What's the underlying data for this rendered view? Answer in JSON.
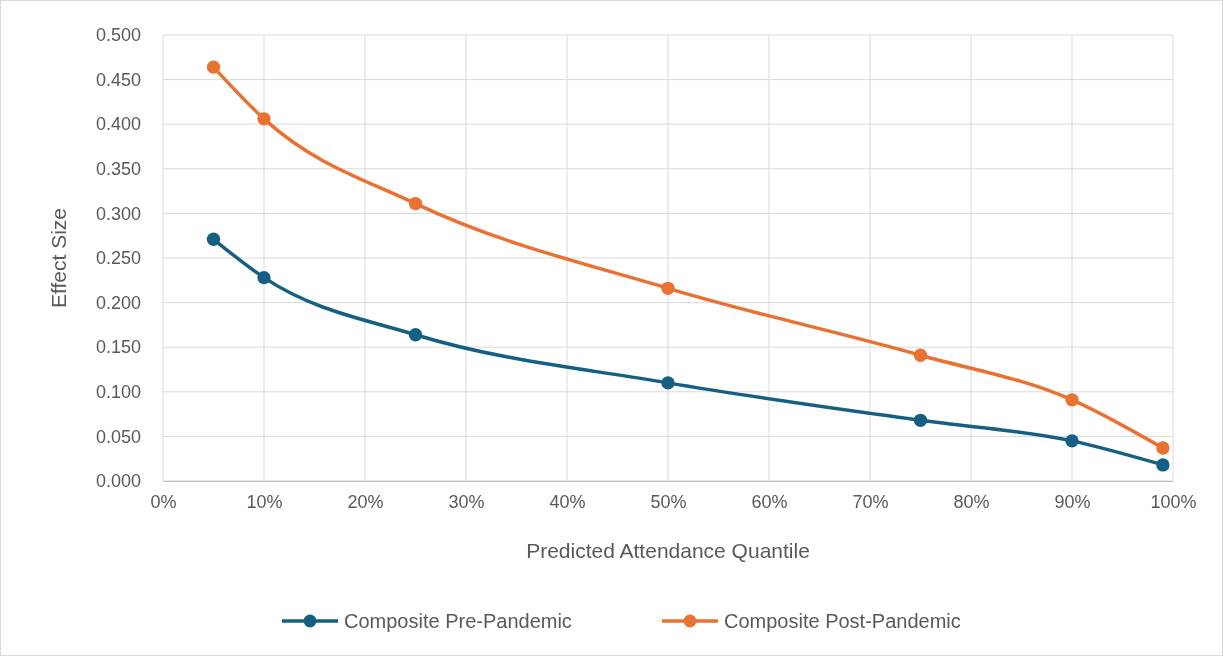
{
  "chart_data": {
    "type": "line",
    "xlabel": "Predicted Attendance Quantile",
    "ylabel": "Effect Size",
    "x": [
      5,
      10,
      25,
      50,
      75,
      90,
      99
    ],
    "series": [
      {
        "name": "Composite Pre-Pandemic",
        "color": "#156082",
        "values": [
          0.271,
          0.228,
          0.164,
          0.11,
          0.068,
          0.045,
          0.018
        ]
      },
      {
        "name": "Composite Post-Pandemic",
        "color": "#e97132",
        "values": [
          0.464,
          0.406,
          0.311,
          0.216,
          0.141,
          0.091,
          0.037
        ]
      }
    ],
    "xlim": [
      0,
      100
    ],
    "xticks": [
      {
        "value": 0,
        "label": "0%"
      },
      {
        "value": 10,
        "label": "10%"
      },
      {
        "value": 20,
        "label": "20%"
      },
      {
        "value": 30,
        "label": "30%"
      },
      {
        "value": 40,
        "label": "40%"
      },
      {
        "value": 50,
        "label": "50%"
      },
      {
        "value": 60,
        "label": "60%"
      },
      {
        "value": 70,
        "label": "70%"
      },
      {
        "value": 80,
        "label": "80%"
      },
      {
        "value": 90,
        "label": "90%"
      },
      {
        "value": 100,
        "label": "100%"
      }
    ],
    "ylim": [
      0,
      0.5
    ],
    "yticks": [
      {
        "value": 0,
        "label": "0.000"
      },
      {
        "value": 0.05,
        "label": "0.050"
      },
      {
        "value": 0.1,
        "label": "0.100"
      },
      {
        "value": 0.15,
        "label": "0.150"
      },
      {
        "value": 0.2,
        "label": "0.200"
      },
      {
        "value": 0.25,
        "label": "0.250"
      },
      {
        "value": 0.3,
        "label": "0.300"
      },
      {
        "value": 0.35,
        "label": "0.350"
      },
      {
        "value": 0.4,
        "label": "0.400"
      },
      {
        "value": 0.45,
        "label": "0.450"
      },
      {
        "value": 0.5,
        "label": "0.500"
      }
    ],
    "grid": true,
    "legend": "bottom",
    "marker": "circle",
    "line_style": "solid"
  }
}
